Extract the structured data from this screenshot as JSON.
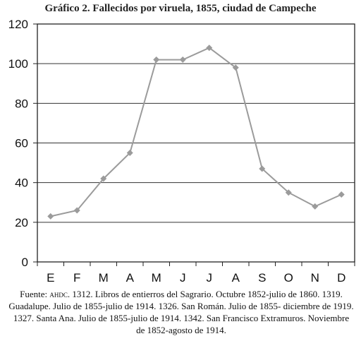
{
  "chart_data": {
    "type": "line",
    "title": "Gráfico 2. Fallecidos por viruela, 1855, ciudad de Campeche",
    "categories": [
      "E",
      "F",
      "M",
      "A",
      "M",
      "J",
      "J",
      "A",
      "S",
      "O",
      "N",
      "D"
    ],
    "values": [
      23,
      26,
      42,
      55,
      102,
      102,
      108,
      98,
      47,
      35,
      28,
      34
    ],
    "ylim": [
      0,
      120
    ],
    "yticks": [
      "0",
      "20",
      "40",
      "60",
      "80",
      "100",
      "120"
    ],
    "grid": true,
    "line_color": "#9b9b9b",
    "marker": "diamond"
  },
  "source": {
    "prefix": "Fuente: ",
    "archive": "ahdc",
    "text": ". 1312. Libros de entierros del Sagrario. Octubre 1852-julio de 1860. 1319. Guadalupe. Julio de 1855-julio de 1914. 1326. San Román. Julio de 1855- diciembre de 1919. 1327. Santa Ana. Julio de 1855-julio de 1914. 1342. San Francisco Extramuros. Noviembre de 1852-agosto de 1914."
  }
}
